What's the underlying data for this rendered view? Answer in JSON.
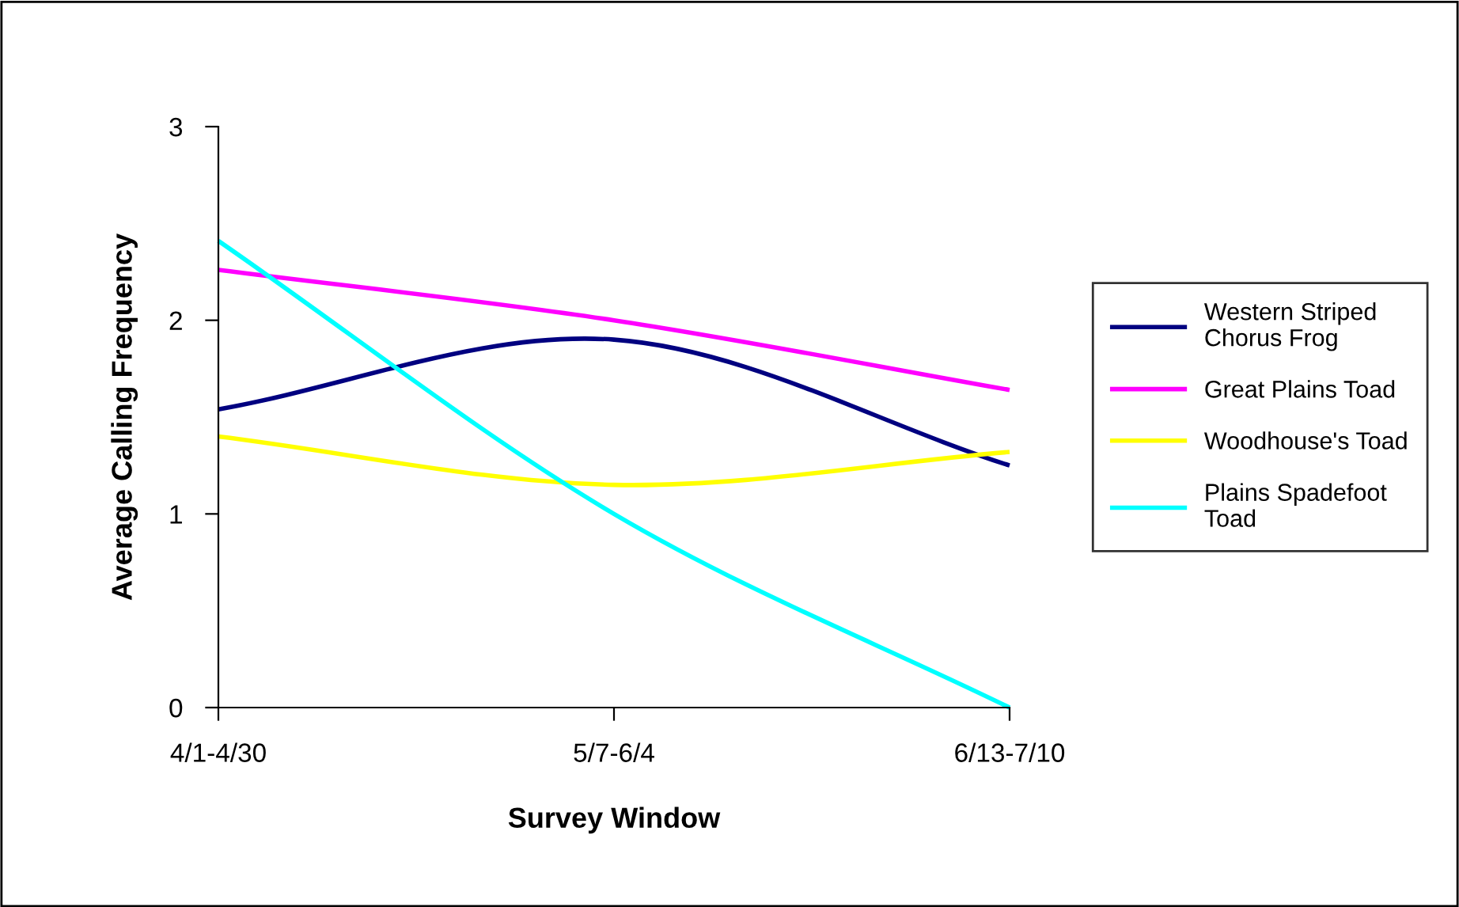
{
  "chart_data": {
    "type": "line",
    "xlabel": "Survey Window",
    "ylabel": "Average Calling Frequency",
    "categories": [
      "4/1-4/30",
      "5/7-6/4",
      "6/13-7/10"
    ],
    "series": [
      {
        "name": "Western Striped Chorus Frog",
        "color": "#000080",
        "values": [
          1.54,
          1.9,
          1.25
        ]
      },
      {
        "name": "Great Plains Toad",
        "color": "#ff00ff",
        "values": [
          2.26,
          2.0,
          1.64
        ]
      },
      {
        "name": "Woodhouse's Toad",
        "color": "#ffff00",
        "values": [
          1.4,
          1.15,
          1.32
        ]
      },
      {
        "name": "Plains Spadefoot Toad",
        "color": "#00ffff",
        "values": [
          2.41,
          1.0,
          0
        ]
      }
    ],
    "ylim": [
      0,
      3
    ],
    "yticks": [
      0,
      1,
      2,
      3
    ],
    "grid": false,
    "legend": "right",
    "marker": "none",
    "line_style": "solid"
  }
}
